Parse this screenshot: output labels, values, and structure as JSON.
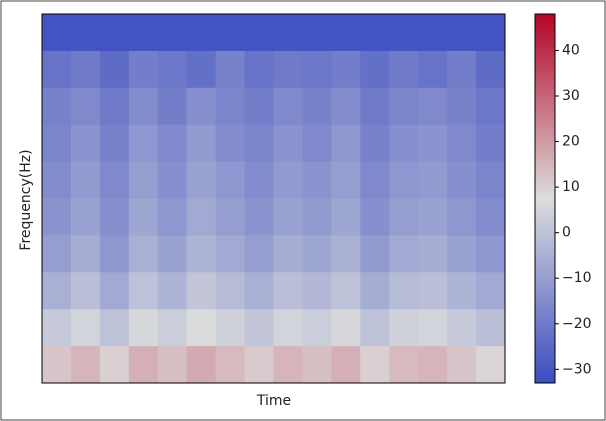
{
  "chart_data": {
    "type": "heatmap",
    "xlabel": "Time",
    "ylabel": "Frequency(Hz)",
    "colors": [
      "#3b4cc0",
      "#dcdddd",
      "#b40426"
    ],
    "zlim": [
      -33,
      48
    ],
    "zticks": [
      {
        "value": -30,
        "label": "−30"
      },
      {
        "value": -20,
        "label": "−20"
      },
      {
        "value": -10,
        "label": "−10"
      },
      0,
      10,
      20,
      30,
      40
    ],
    "values": [
      [
        -31,
        -31,
        -31,
        -31,
        -31,
        -31,
        -31,
        -31,
        -31,
        -31,
        -31,
        -31,
        -31,
        -31,
        -31,
        -31
      ],
      [
        -22,
        -20,
        -24,
        -19,
        -21,
        -23,
        -18,
        -22,
        -20,
        -21,
        -19,
        -23,
        -20,
        -22,
        -19,
        -24
      ],
      [
        -18,
        -16,
        -20,
        -15,
        -19,
        -14,
        -17,
        -19,
        -16,
        -18,
        -15,
        -20,
        -17,
        -16,
        -18,
        -21
      ],
      [
        -17,
        -13,
        -18,
        -12,
        -16,
        -11,
        -15,
        -17,
        -13,
        -16,
        -12,
        -18,
        -14,
        -13,
        -16,
        -19
      ],
      [
        -15,
        -11,
        -16,
        -10,
        -14,
        -9,
        -12,
        -15,
        -11,
        -13,
        -10,
        -16,
        -12,
        -11,
        -14,
        -17
      ],
      [
        -13,
        -9,
        -14,
        -8,
        -12,
        -7,
        -10,
        -13,
        -9,
        -11,
        -8,
        -14,
        -10,
        -9,
        -12,
        -15
      ],
      [
        -10,
        -6,
        -12,
        -5,
        -9,
        -4,
        -7,
        -10,
        -6,
        -8,
        -5,
        -11,
        -7,
        -6,
        -9,
        -12
      ],
      [
        -5,
        -1,
        -7,
        0,
        -4,
        1,
        -2,
        -5,
        -1,
        -3,
        0,
        -6,
        -2,
        -1,
        -4,
        -7
      ],
      [
        2,
        5,
        0,
        6,
        3,
        7,
        4,
        1,
        5,
        3,
        6,
        0,
        4,
        5,
        2,
        -1
      ],
      [
        12,
        15,
        10,
        16,
        13,
        17,
        14,
        11,
        15,
        13,
        16,
        10,
        14,
        15,
        12,
        9
      ]
    ]
  }
}
